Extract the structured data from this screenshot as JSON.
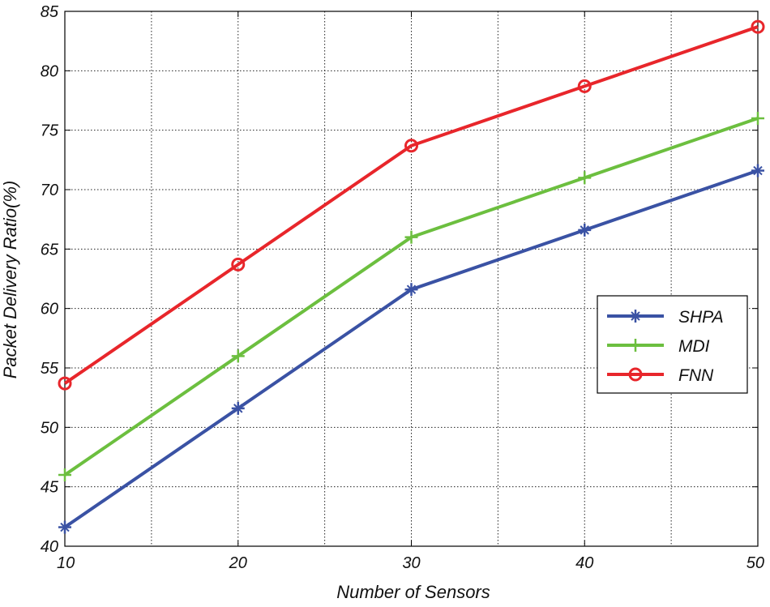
{
  "chart_data": {
    "type": "line",
    "xlabel": "Number of Sensors",
    "ylabel": "Packet Delivery Ratio(%)",
    "x": [
      10,
      20,
      30,
      40,
      50
    ],
    "xlim": [
      10,
      50
    ],
    "ylim": [
      40,
      85
    ],
    "xticks": [
      10,
      20,
      30,
      40,
      50
    ],
    "yticks": [
      40,
      45,
      50,
      55,
      60,
      65,
      70,
      75,
      80,
      85
    ],
    "xgrid_minor": [
      15,
      25,
      35,
      45
    ],
    "grid": true,
    "legend_position": "right",
    "series": [
      {
        "name": "SHPA",
        "color": "#3a52a4",
        "marker": "plus-star",
        "values": [
          41.6,
          51.6,
          61.6,
          66.6,
          71.6
        ]
      },
      {
        "name": "MDI",
        "color": "#6cbf3f",
        "marker": "plus",
        "values": [
          46.0,
          56.0,
          66.0,
          71.0,
          76.0
        ]
      },
      {
        "name": "FNN",
        "color": "#e8262b",
        "marker": "circle",
        "values": [
          53.7,
          63.7,
          73.7,
          78.7,
          83.7
        ]
      }
    ]
  }
}
